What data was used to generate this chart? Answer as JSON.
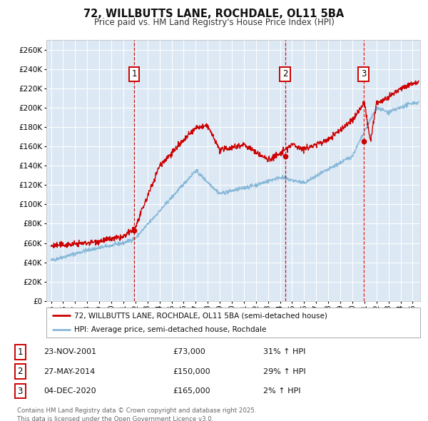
{
  "title1": "72, WILLBUTTS LANE, ROCHDALE, OL11 5BA",
  "title2": "Price paid vs. HM Land Registry's House Price Index (HPI)",
  "ylim": [
    0,
    270000
  ],
  "yticks": [
    0,
    20000,
    40000,
    60000,
    80000,
    100000,
    120000,
    140000,
    160000,
    180000,
    200000,
    220000,
    240000,
    260000
  ],
  "xlim_start": 1994.6,
  "xlim_end": 2025.6,
  "xtick_years": [
    1995,
    1996,
    1997,
    1998,
    1999,
    2000,
    2001,
    2002,
    2003,
    2004,
    2005,
    2006,
    2007,
    2008,
    2009,
    2010,
    2011,
    2012,
    2013,
    2014,
    2015,
    2016,
    2017,
    2018,
    2019,
    2020,
    2021,
    2022,
    2023,
    2024,
    2025
  ],
  "sale_dates": [
    2001.9,
    2014.42,
    2020.92
  ],
  "sale_labels": [
    "1",
    "2",
    "3"
  ],
  "sale_prices": [
    73000,
    150000,
    165000
  ],
  "sale_date_strs": [
    "23-NOV-2001",
    "27-MAY-2014",
    "04-DEC-2020"
  ],
  "sale_hpi_pct": [
    "31% ↑ HPI",
    "29% ↑ HPI",
    "2% ↑ HPI"
  ],
  "red_line_color": "#cc0000",
  "blue_line_color": "#88b8d8",
  "background_color": "#dce9f5",
  "grid_color": "#ffffff",
  "legend_label_red": "72, WILLBUTTS LANE, ROCHDALE, OL11 5BA (semi-detached house)",
  "legend_label_blue": "HPI: Average price, semi-detached house, Rochdale",
  "footnote": "Contains HM Land Registry data © Crown copyright and database right 2025.\nThis data is licensed under the Open Government Licence v3.0."
}
